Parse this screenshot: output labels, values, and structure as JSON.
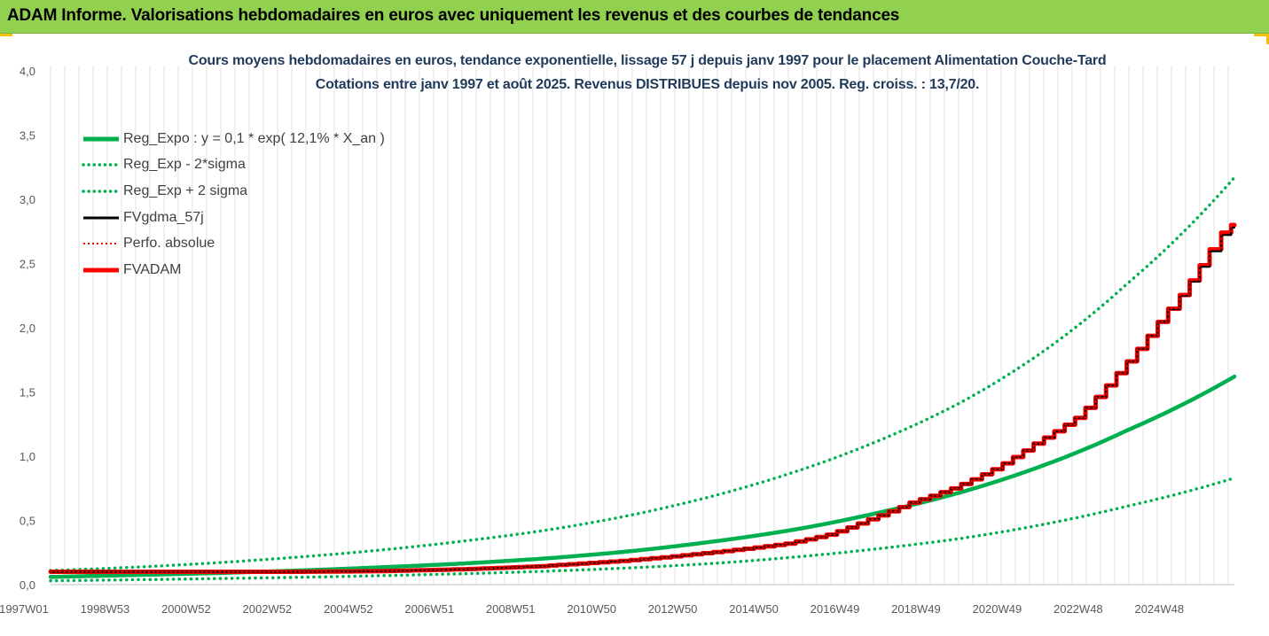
{
  "header": {
    "title": "ADAM Informe. Valorisations hebdomadaires en euros avec uniquement les revenus et des courbes de tendances"
  },
  "colors": {
    "header_bg": "#92D050",
    "green": "#00B050",
    "red": "#FF0000",
    "black": "#000000",
    "title_text": "#1F3A5A",
    "accent": "#F2C200"
  },
  "chart_data": {
    "type": "line",
    "title": "Cours moyens hebdomadaires en euros, tendance exponentielle, lissage 57 j depuis janv 1997  pour le placement Alimentation Couche-Tard",
    "subtitle": "Cotations entre janv 1997 et août 2025.  Revenus DISTRIBUES depuis nov 2005. Reg. croiss. : 13,7/20.",
    "x_tick_labels": [
      "1997W01",
      "1998W53",
      "2000W52",
      "2002W52",
      "2004W52",
      "2006W51",
      "2008W51",
      "2010W50",
      "2012W50",
      "2014W50",
      "2016W49",
      "2018W49",
      "2020W49",
      "2022W48",
      "2024W48"
    ],
    "x_range": [
      1997.0,
      2025.6
    ],
    "y_ticks": [
      "0,0",
      "0,5",
      "1,0",
      "1,5",
      "2,0",
      "2,5",
      "3,0",
      "3,5",
      "4,0"
    ],
    "ylim": [
      0,
      4
    ],
    "grid": "vertical",
    "legend_position": "top-left",
    "series": [
      {
        "name": "Reg_Expo : y = 0,1 * exp( 12,1% *  X_an )",
        "style": "solid",
        "color": "#00B050",
        "x": [
          1997,
          1999,
          2001,
          2003,
          2005,
          2007,
          2009,
          2011,
          2013,
          2015,
          2017,
          2019,
          2021,
          2023,
          2025.6
        ],
        "y": [
          0.06,
          0.075,
          0.09,
          0.11,
          0.135,
          0.165,
          0.205,
          0.26,
          0.335,
          0.43,
          0.56,
          0.72,
          0.93,
          1.2,
          1.62
        ]
      },
      {
        "name": "Reg_Exp - 2*sigma",
        "style": "dotted",
        "color": "#00B050",
        "x": [
          1997,
          1999,
          2001,
          2003,
          2005,
          2007,
          2009,
          2011,
          2013,
          2015,
          2017,
          2019,
          2021,
          2023,
          2025.6
        ],
        "y": [
          0.03,
          0.038,
          0.047,
          0.057,
          0.07,
          0.085,
          0.105,
          0.13,
          0.165,
          0.215,
          0.28,
          0.36,
          0.47,
          0.61,
          0.83
        ]
      },
      {
        "name": "Reg_Exp + 2 sigma",
        "style": "dotted",
        "color": "#00B050",
        "x": [
          1997,
          1999,
          2001,
          2003,
          2005,
          2007,
          2009,
          2011,
          2013,
          2015,
          2017,
          2019,
          2021,
          2023,
          2025.6
        ],
        "y": [
          0.11,
          0.135,
          0.17,
          0.215,
          0.27,
          0.34,
          0.425,
          0.54,
          0.69,
          0.88,
          1.12,
          1.42,
          1.82,
          2.34,
          3.17
        ]
      },
      {
        "name": "FVgdma_57j",
        "style": "solid",
        "color": "#000000",
        "x": [
          1997,
          1999,
          2001,
          2003,
          2005,
          2007,
          2009,
          2011,
          2013,
          2015,
          2016,
          2017,
          2018,
          2019,
          2020,
          2021,
          2022,
          2023,
          2024,
          2025.6
        ],
        "y": [
          0.1,
          0.1,
          0.1,
          0.1,
          0.105,
          0.12,
          0.145,
          0.185,
          0.245,
          0.32,
          0.39,
          0.51,
          0.64,
          0.75,
          0.9,
          1.1,
          1.3,
          1.65,
          2.05,
          2.78
        ]
      },
      {
        "name": "Perfo. absolue",
        "style": "dotted",
        "color": "#FF0000",
        "x": [
          1997,
          1999,
          2001,
          2003,
          2005,
          2007,
          2009,
          2011,
          2013,
          2015,
          2016,
          2017,
          2018,
          2019,
          2020,
          2021,
          2022,
          2023,
          2024,
          2025.6
        ],
        "y": [
          0.1,
          0.1,
          0.1,
          0.1,
          0.105,
          0.12,
          0.145,
          0.185,
          0.245,
          0.32,
          0.39,
          0.51,
          0.64,
          0.75,
          0.9,
          1.1,
          1.3,
          1.65,
          2.05,
          2.8
        ]
      },
      {
        "name": "FVADAM",
        "style": "solid-thick",
        "color": "#FF0000",
        "x": [
          1997,
          1999,
          2001,
          2003,
          2005,
          2007,
          2009,
          2011,
          2013,
          2015,
          2016,
          2017,
          2018,
          2019,
          2020,
          2021,
          2022,
          2023,
          2024,
          2025.6
        ],
        "y": [
          0.1,
          0.1,
          0.1,
          0.1,
          0.105,
          0.12,
          0.145,
          0.185,
          0.245,
          0.32,
          0.39,
          0.51,
          0.64,
          0.75,
          0.9,
          1.1,
          1.3,
          1.65,
          2.05,
          2.8
        ]
      }
    ]
  }
}
